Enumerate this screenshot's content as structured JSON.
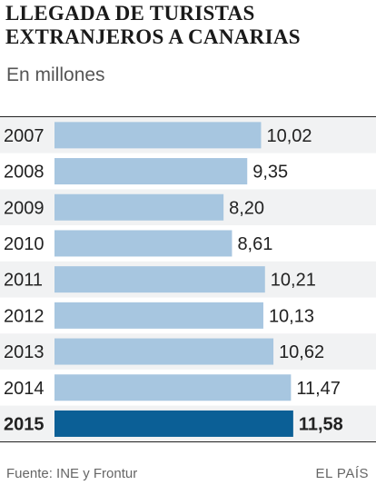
{
  "header": {
    "title_line1": "LLEGADA DE TURISTAS",
    "title_line2": "EXTRANJEROS A CANARIAS",
    "subtitle": "En millones"
  },
  "footer": {
    "source": "Fuente: INE y Frontur",
    "brand": "EL PAÍS"
  },
  "colors": {
    "bar": "#a7c6e0",
    "highlight_bar": "#0b5f96",
    "row_bg": "#f1f2f3"
  },
  "chart_data": {
    "type": "bar",
    "orientation": "horizontal",
    "categories": [
      "2007",
      "2008",
      "2009",
      "2010",
      "2011",
      "2012",
      "2013",
      "2014",
      "2015"
    ],
    "values": [
      10.02,
      9.35,
      8.2,
      8.61,
      10.21,
      10.13,
      10.62,
      11.47,
      11.58
    ],
    "value_labels": [
      "10,02",
      "9,35",
      "8,20",
      "8,61",
      "10,21",
      "10,13",
      "10,62",
      "11,47",
      "11,58"
    ],
    "highlight": "2015",
    "title": "LLEGADA DE TURISTAS EXTRANJEROS A CANARIAS",
    "unit": "En millones"
  }
}
